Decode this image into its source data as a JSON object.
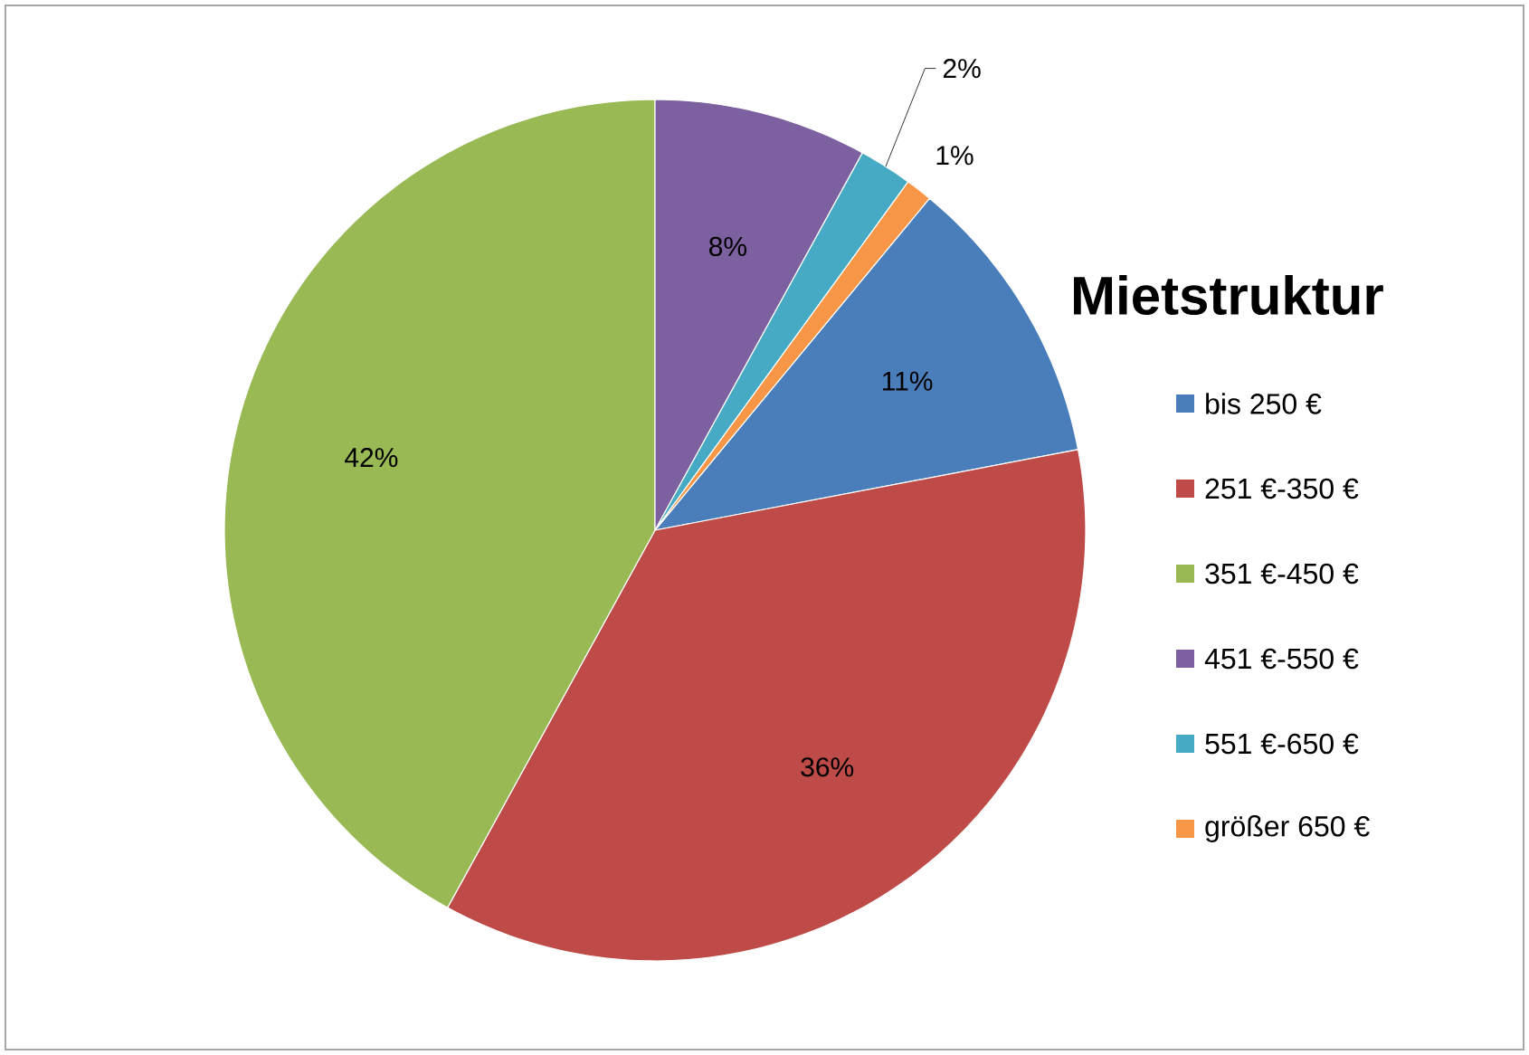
{
  "chart_data": {
    "type": "pie",
    "title": "Mietstruktur",
    "categories": [
      "bis 250 €",
      "251 €-350 €",
      "351 €-450 €",
      "451 €-550 €",
      "551 €-650 €",
      "größer 650 €"
    ],
    "values": [
      11,
      36,
      42,
      8,
      2,
      1
    ],
    "value_labels": [
      "11%",
      "36%",
      "42%",
      "8%",
      "2%",
      "1%"
    ],
    "colors": [
      "#4a7ebb",
      "#be4b48",
      "#98b954",
      "#7d60a0",
      "#46aac5",
      "#f79646"
    ],
    "legend": "right"
  }
}
